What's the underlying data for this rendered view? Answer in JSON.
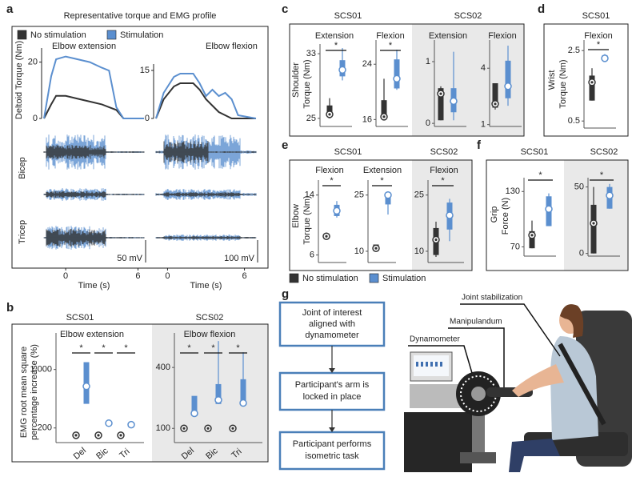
{
  "figure": {
    "panel_labels": [
      "a",
      "b",
      "c",
      "d",
      "e",
      "f",
      "g"
    ],
    "a_title": "Representative torque and EMG profile",
    "a_ylabel": "Deltoid Torque (Nm)",
    "a_rows": [
      "Bicep",
      "Tricep"
    ],
    "a_scale_bars": [
      "50 mV",
      "100 mV"
    ],
    "b_groups": [
      "SCS01",
      "SCS02"
    ],
    "b_ylabel": [
      "EMG root mean square",
      "percentage increase (%)"
    ],
    "c_groups": [
      "SCS01",
      "SCS02"
    ],
    "c_row": "Shoulder",
    "c_ylabel": "Torque (Nm)",
    "d_group": "SCS01",
    "d_row": "Wrist",
    "d_ylabel": "Torque (Nm)",
    "e_groups": [
      "SCS01",
      "SCS02"
    ],
    "e_row": "Elbow",
    "e_ylabel": "Torque (Nm)",
    "f_groups": [
      "SCS01",
      "SCS02"
    ],
    "f_row": "Grip",
    "f_ylabel": "Force (N)",
    "legend": {
      "names": [
        "No stimulation",
        "Stimulation"
      ],
      "colors": [
        "#333333",
        "#5b8fcf"
      ]
    },
    "g_steps": [
      [
        "Joint of interest",
        "aligned with",
        "dynamometer"
      ],
      [
        "Participant's arm is",
        "locked in place"
      ],
      [
        "Participant performs",
        "isometric task"
      ]
    ],
    "g_callouts": [
      "Joint stabilization",
      "Manipulandum",
      "Dynamometer"
    ]
  },
  "chart_data": [
    {
      "type": "line",
      "title": "Elbow extension",
      "x_label": "Time (s)",
      "x": [
        -1.8,
        -1.2,
        -0.8,
        0,
        1,
        2,
        3,
        3.6,
        4.2,
        4.8,
        6.5
      ],
      "series": [
        {
          "name": "No stimulation",
          "color": "#333333",
          "values": [
            0,
            5,
            8,
            8,
            7,
            6,
            5,
            4,
            3,
            0,
            0
          ]
        },
        {
          "name": "Stimulation",
          "color": "#5b8fcf",
          "values": [
            0,
            15,
            21,
            22,
            21,
            20,
            18,
            17,
            4,
            0,
            0
          ]
        }
      ],
      "xlim": [
        -1.8,
        6.5
      ],
      "xticks": [
        0,
        6
      ],
      "ylim": [
        0,
        25
      ],
      "yticks": [
        0,
        20
      ]
    },
    {
      "type": "line",
      "title": "Elbow flexion",
      "x_label": "Time (s)",
      "x": [
        -0.9,
        -0.3,
        0.5,
        1,
        2,
        2.5,
        3,
        3.5,
        4,
        4.5,
        5,
        5.5,
        6.9
      ],
      "series": [
        {
          "color": "#333333",
          "values": [
            0,
            6,
            10,
            11,
            11,
            9,
            6,
            4,
            2,
            1,
            0,
            0,
            0
          ]
        },
        {
          "color": "#5b8fcf",
          "values": [
            0,
            8,
            13,
            14,
            14,
            11,
            7,
            9,
            7,
            8,
            6,
            1,
            0
          ]
        }
      ],
      "xlim": [
        -0.9,
        6.9
      ],
      "xticks": [
        0,
        6
      ],
      "ylim": [
        0,
        17
      ],
      "yticks": [
        0,
        15
      ]
    },
    {
      "type": "box",
      "title": "Elbow extension",
      "categories": [
        "Del",
        "Bic",
        "Tri"
      ],
      "ylim": [
        0,
        1500
      ],
      "yticks": [
        200,
        {
          "value": 1000,
          "label": "1,000"
        }
      ],
      "significance": [
        "*",
        "*",
        "*"
      ],
      "series": [
        {
          "median": [
            100,
            100,
            100
          ]
        },
        {
          "q1": [
            530,
            null,
            null
          ],
          "median": [
            770,
            265,
            245
          ],
          "q3": [
            1100,
            null,
            null
          ]
        }
      ]
    },
    {
      "type": "box",
      "title": "Elbow flexion",
      "categories": [
        "Del",
        "Bic",
        "Tri"
      ],
      "ylim": [
        30,
        570
      ],
      "yticks": [
        100,
        400
      ],
      "significance": [
        "*",
        "*",
        "*"
      ],
      "series": [
        {
          "median": [
            100,
            100,
            100
          ]
        },
        {
          "q1": [
            162,
            220,
            217
          ],
          "median": [
            174,
            240,
            225
          ],
          "q3": [
            260,
            318,
            342
          ],
          "max": [
            null,
            530,
            475
          ]
        }
      ]
    },
    {
      "type": "box",
      "title": "Extension",
      "ylim": [
        24,
        34.2
      ],
      "yticks": [
        25,
        33
      ],
      "significance": [
        "*"
      ],
      "series": [
        {
          "min": [
            25
          ],
          "q1": [
            25.3
          ],
          "median": [
            25.5
          ],
          "q3": [
            26.6
          ],
          "max": [
            27.5
          ]
        },
        {
          "min": [
            29.7
          ],
          "q1": [
            30.2
          ],
          "median": [
            31
          ],
          "q3": [
            32.2
          ],
          "max": [
            33.7
          ]
        }
      ]
    },
    {
      "type": "box",
      "title": "Flexion",
      "ylim": [
        15,
        27.5
      ],
      "yticks": [
        16,
        24
      ],
      "significance": [
        "*"
      ],
      "series": [
        {
          "q1": [
            16.2
          ],
          "median": [
            16.4
          ],
          "q3": [
            18.8
          ],
          "max": [
            21.9
          ]
        },
        {
          "min": [
            20.3
          ],
          "q1": [
            20.5
          ],
          "median": [
            21.9
          ],
          "q3": [
            24.7
          ],
          "max": [
            26.1
          ]
        }
      ]
    },
    {
      "type": "box",
      "title": "Extension",
      "ylim": [
        -0.05,
        1.35
      ],
      "yticks": [
        0,
        1
      ],
      "series": [
        {
          "min": [
            0.05
          ],
          "q1": [
            0.05
          ],
          "median": [
            0.48
          ],
          "q3": [
            0.57
          ],
          "max": [
            0.6
          ]
        },
        {
          "min": [
            0.05
          ],
          "q1": [
            0.18
          ],
          "median": [
            0.36
          ],
          "q3": [
            0.57
          ],
          "max": [
            1.16
          ]
        }
      ]
    },
    {
      "type": "box",
      "title": "Flexion",
      "ylim": [
        0.9,
        5.5
      ],
      "yticks": [
        1,
        4
      ],
      "series": [
        {
          "min": [
            1.8
          ],
          "q1": [
            1.9
          ],
          "median": [
            2.1
          ],
          "q3": [
            3.2
          ],
          "max": [
            3.2
          ]
        },
        {
          "min": [
            2
          ],
          "q1": [
            2.4
          ],
          "median": [
            3.04
          ],
          "q3": [
            4.4
          ],
          "max": [
            5.2
          ]
        }
      ]
    },
    {
      "type": "box",
      "title": "Flexion",
      "ylim": [
        0.3,
        2.8
      ],
      "yticks": [
        0.5,
        2.5
      ],
      "significance": [
        "*"
      ],
      "series": [
        {
          "min": [
            1.08
          ],
          "q1": [
            1.08
          ],
          "median": [
            1.6
          ],
          "q3": [
            1.79
          ],
          "max": [
            2
          ]
        },
        {
          "min": [
            2.2
          ],
          "q1": [
            2.22
          ],
          "median": [
            2.28
          ],
          "q3": [
            2.37
          ],
          "max": [
            2.4
          ]
        }
      ]
    },
    {
      "type": "box",
      "title": "Flexion",
      "ylim": [
        5,
        16
      ],
      "yticks": [
        6,
        14
      ],
      "significance": [
        "*"
      ],
      "series": [
        {
          "median": [
            8.5
          ]
        },
        {
          "min": [
            11
          ],
          "q1": [
            11.2
          ],
          "median": [
            11.9
          ],
          "q3": [
            12.7
          ],
          "max": [
            13.2
          ]
        }
      ]
    },
    {
      "type": "box",
      "title": "Extension",
      "ylim": [
        7,
        29
      ],
      "yticks": [
        10,
        25
      ],
      "significance": [
        "*"
      ],
      "series": [
        {
          "q1": [
            10.3
          ],
          "median": [
            10.8
          ],
          "q3": [
            11.8
          ]
        },
        {
          "min": [
            19.8
          ],
          "q1": [
            22.5
          ],
          "median": [
            25
          ],
          "q3": [
            25.6
          ]
        }
      ]
    },
    {
      "type": "box",
      "title": "Flexion",
      "ylim": [
        7,
        29
      ],
      "yticks": [
        10,
        25
      ],
      "significance": [
        "*"
      ],
      "series": [
        {
          "min": [
            8.5
          ],
          "q1": [
            9
          ],
          "median": [
            13.1
          ],
          "q3": [
            16.2
          ],
          "max": [
            17.9
          ]
        },
        {
          "min": [
            12.7
          ],
          "q1": [
            15.8
          ],
          "median": [
            19.6
          ],
          "q3": [
            23
          ],
          "max": [
            24
          ]
        }
      ]
    },
    {
      "type": "box",
      "ylim": [
        60,
        145
      ],
      "yticks": [
        70,
        130
      ],
      "significance": [
        "*"
      ],
      "series": [
        {
          "q1": [
            68.5
          ],
          "median": [
            82.7
          ],
          "q3": [
            87
          ],
          "max": [
            98.5
          ]
        },
        {
          "q1": [
            92.5
          ],
          "median": [
            111
          ],
          "q3": [
            124.8
          ],
          "max": [
            128
          ]
        }
      ]
    },
    {
      "type": "box",
      "ylim": [
        -2,
        57
      ],
      "yticks": [
        0,
        50
      ],
      "significance": [
        "*"
      ],
      "series": [
        {
          "q1": [
            0
          ],
          "median": [
            22.7
          ],
          "q3": [
            36.6
          ],
          "max": [
            50
          ]
        },
        {
          "q1": [
            33.7
          ],
          "median": [
            43.6
          ],
          "q3": [
            50
          ],
          "max": [
            52.3
          ]
        }
      ]
    }
  ]
}
